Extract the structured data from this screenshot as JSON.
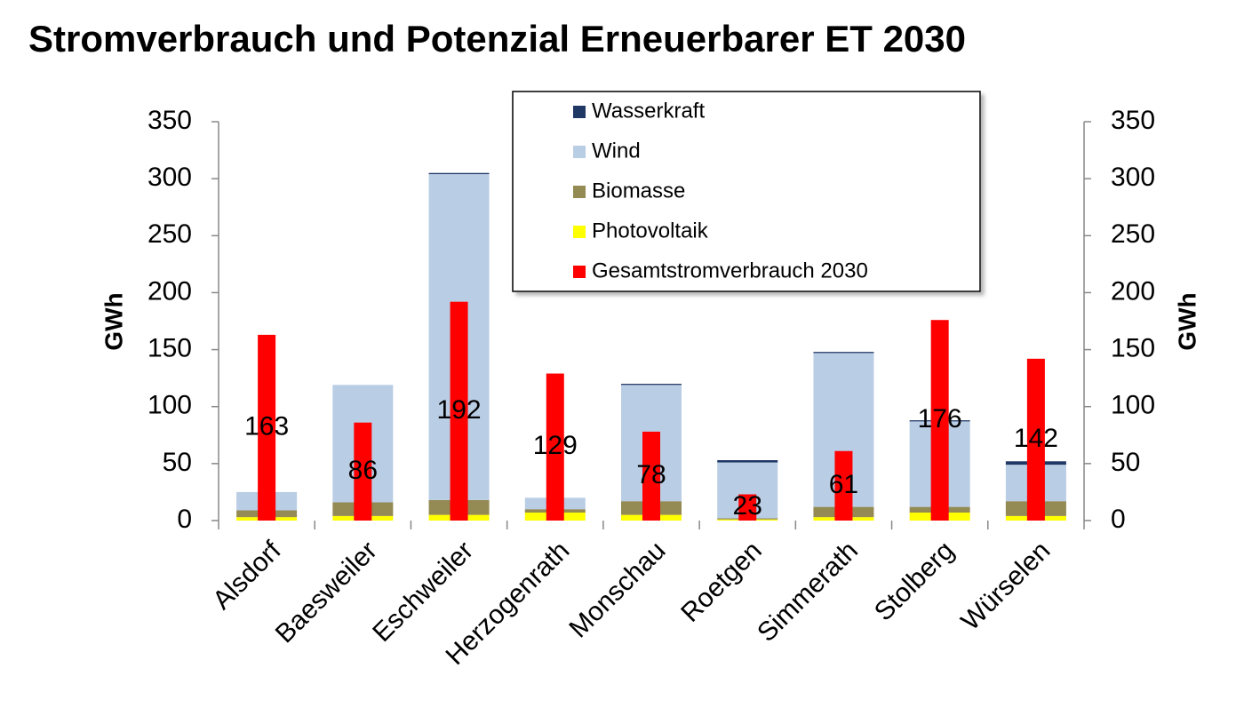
{
  "chart_data": {
    "type": "bar",
    "title": "Stromverbrauch und Potenzial Erneuerbarer ET 2030",
    "categories": [
      "Alsdorf",
      "Baesweiler",
      "Eschweiler",
      "Herzogenrath",
      "Monschau",
      "Roetgen",
      "Simmerath",
      "Stolberg",
      "Würselen"
    ],
    "series": [
      {
        "name": "Wasserkraft",
        "color": "#1f3864",
        "values": [
          0,
          0,
          1,
          0,
          1,
          2,
          1,
          1,
          3
        ]
      },
      {
        "name": "Wind",
        "color": "#b9cde5",
        "values": [
          16,
          103,
          286,
          10,
          102,
          49,
          135,
          75,
          32
        ]
      },
      {
        "name": "Biomasse",
        "color": "#948a54",
        "values": [
          6,
          12,
          13,
          3,
          12,
          1,
          9,
          5,
          13
        ]
      },
      {
        "name": "Photovoltaik",
        "color": "#ffff00",
        "values": [
          3,
          4,
          5,
          7,
          5,
          1,
          3,
          7,
          4
        ]
      },
      {
        "name": "Gesamtstromverbrauch 2030",
        "color": "#ff0000",
        "axis": "y2",
        "values": [
          163,
          86,
          192,
          129,
          78,
          23,
          61,
          176,
          142
        ]
      }
    ],
    "ylabel": "GWh",
    "y2label": "GWh",
    "ylim": [
      0,
      350
    ],
    "yticks": [
      0,
      50,
      100,
      150,
      200,
      250,
      300,
      350
    ],
    "y2lim": [
      0,
      350
    ],
    "y2ticks": [
      0,
      50,
      100,
      150,
      200,
      250,
      300,
      350
    ],
    "stacked": true,
    "legend": "top-center"
  }
}
